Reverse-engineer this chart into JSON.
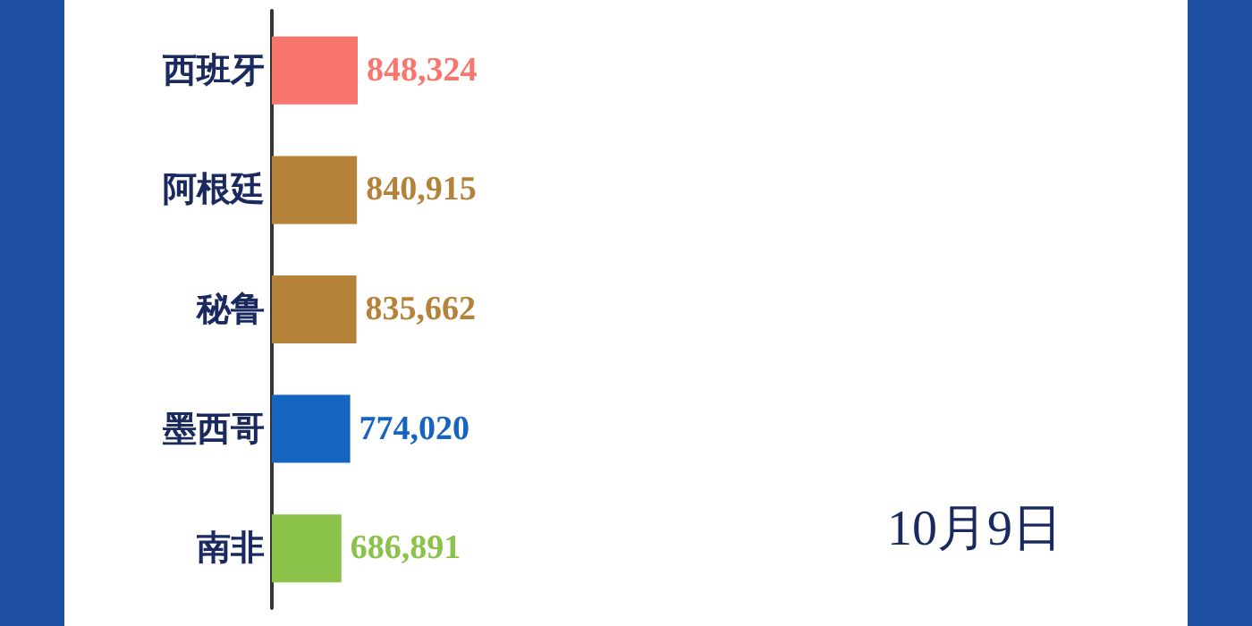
{
  "chart_data": {
    "type": "bar",
    "orientation": "horizontal",
    "categories": [
      "西班牙",
      "阿根廷",
      "秘鲁",
      "墨西哥",
      "南非"
    ],
    "values": [
      848324,
      840915,
      835662,
      774020,
      686891
    ],
    "value_labels": [
      "848,324",
      "840,915",
      "835,662",
      "774,020",
      "686,891"
    ],
    "colors": [
      "#f8766d",
      "#b5823a",
      "#b5823a",
      "#1565c0",
      "#8bc34a"
    ],
    "annotations": [
      "10月9日"
    ]
  }
}
